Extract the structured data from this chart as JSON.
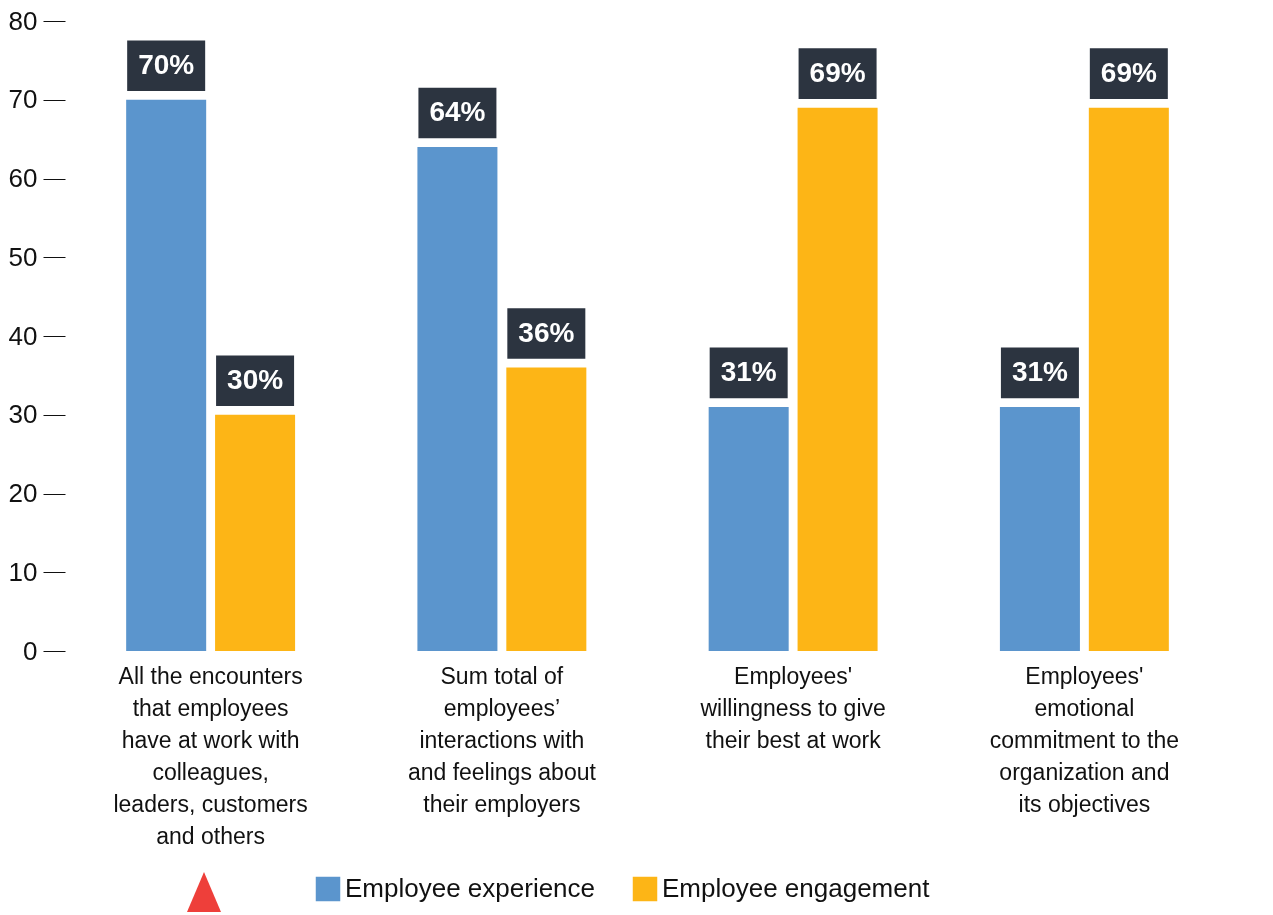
{
  "chart_data": {
    "type": "bar",
    "categories": [
      "All the encounters that  employees have at work with colleagues, leaders, customers and others",
      "Sum total of employees’ interactions with and feelings about their employers",
      "Employees' willingness to give their best at work",
      "Employees' emotional commitment to the organization and its objectives"
    ],
    "series": [
      {
        "name": "Employee experience",
        "color": "#5b95cd",
        "values": [
          70,
          64,
          31,
          31
        ],
        "value_labels": [
          "70%",
          "64%",
          "31%",
          "31%"
        ]
      },
      {
        "name": "Employee engagement",
        "color": "#fdb516",
        "values": [
          30,
          36,
          69,
          69
        ],
        "value_labels": [
          "30%",
          "36%",
          "69%",
          "69%"
        ]
      }
    ],
    "ylim": [
      0,
      80
    ],
    "yticks": [
      0,
      10,
      20,
      30,
      40,
      50,
      60,
      70,
      80
    ],
    "grid": false,
    "legend": "bottom"
  }
}
